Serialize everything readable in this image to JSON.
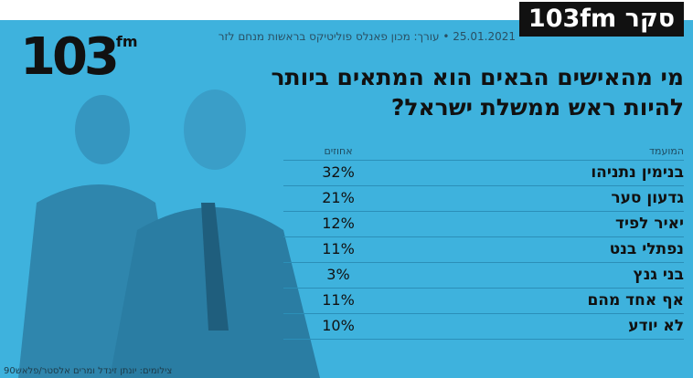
{
  "badge": "סקר 103fm",
  "byline": "25.01.2021 • עורך: מכון פאנלס פוליטיקס בראשות מנחם לזר",
  "logo": {
    "number": "103",
    "suffix": "fm"
  },
  "title": [
    "מי מהאישים הבאים הוא המתאים ביותר",
    "להיות ראש ממשלת ישראל?"
  ],
  "table": {
    "header": [
      "המועמד",
      "אחוזים"
    ],
    "rows": [
      [
        "בנימין נתניהו",
        "32%"
      ],
      [
        "גדעון סער",
        "21%"
      ],
      [
        "יאיר לפיד",
        "12%"
      ],
      [
        "נפתלי בנט",
        "11%"
      ],
      [
        "בני גנץ",
        "3%"
      ],
      [
        "אף אחד מהם",
        "11%"
      ],
      [
        "לא יודע",
        "10%"
      ]
    ]
  },
  "credit": "צילומים: יונתן זינדל ומרים אלסטר/פלאש90"
}
